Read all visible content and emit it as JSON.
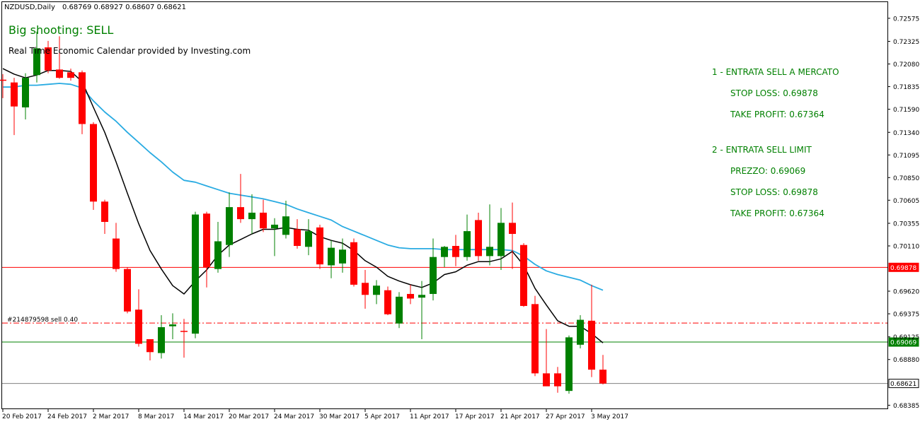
{
  "header": {
    "symbol": "NZDUSD,Daily",
    "ohlc": "0.68769 0.68927 0.68607 0.68621"
  },
  "overlay": {
    "signal": "Big shooting: SELL",
    "provider": "Real Time Economic Calendar provided by Investing.com"
  },
  "trade_info": [
    "1 - ENTRATA SELL A MERCATO",
    "STOP LOSS: 0.69878",
    "TAKE PROFIT: 0.67364",
    "2 - ENTRATA SELL LIMIT",
    "PREZZO: 0.69069",
    "STOP LOSS: 0.69878",
    "TAKE PROFIT: 0.67364"
  ],
  "colors": {
    "bull": "#008000",
    "bear": "#ff0000",
    "ma_fast": "#000000",
    "ma_slow": "#29abe2",
    "sl_line": "#ff0000",
    "entry_line": "#008000",
    "text_green": "#008000"
  },
  "chart_data": {
    "type": "candlestick",
    "ylim": [
      0.6835,
      0.7275
    ],
    "y_ticks": [
      "0.72575",
      "0.72325",
      "0.72080",
      "0.71835",
      "0.71590",
      "0.71340",
      "0.71095",
      "0.70850",
      "0.70605",
      "0.70355",
      "0.70110",
      "0.69620",
      "0.69375",
      "0.69125",
      "0.68880",
      "0.68385"
    ],
    "x_labels": [
      {
        "index": 0,
        "label": "20 Feb 2017"
      },
      {
        "index": 4,
        "label": "24 Feb 2017"
      },
      {
        "index": 8,
        "label": "2 Mar 2017"
      },
      {
        "index": 12,
        "label": "8 Mar 2017"
      },
      {
        "index": 16,
        "label": "14 Mar 2017"
      },
      {
        "index": 20,
        "label": "20 Mar 2017"
      },
      {
        "index": 24,
        "label": "24 Mar 2017"
      },
      {
        "index": 28,
        "label": "30 Mar 2017"
      },
      {
        "index": 32,
        "label": "5 Apr 2017"
      },
      {
        "index": 36,
        "label": "11 Apr 2017"
      },
      {
        "index": 40,
        "label": "17 Apr 2017"
      },
      {
        "index": 44,
        "label": "21 Apr 2017"
      },
      {
        "index": 48,
        "label": "27 Apr 2017"
      },
      {
        "index": 52,
        "label": "3 May 2017"
      }
    ],
    "candles": [
      {
        "o": 0.7191,
        "h": 0.7197,
        "l": 0.7171,
        "c": 0.719
      },
      {
        "o": 0.7188,
        "h": 0.7193,
        "l": 0.7131,
        "c": 0.7162
      },
      {
        "o": 0.7161,
        "h": 0.7198,
        "l": 0.7148,
        "c": 0.7193
      },
      {
        "o": 0.7196,
        "h": 0.7243,
        "l": 0.7188,
        "c": 0.7225
      },
      {
        "o": 0.7226,
        "h": 0.7233,
        "l": 0.7198,
        "c": 0.7201
      },
      {
        "o": 0.7202,
        "h": 0.7238,
        "l": 0.7192,
        "c": 0.7193
      },
      {
        "o": 0.7199,
        "h": 0.7203,
        "l": 0.719,
        "c": 0.7193
      },
      {
        "o": 0.7199,
        "h": 0.7201,
        "l": 0.7132,
        "c": 0.7143
      },
      {
        "o": 0.7143,
        "h": 0.7145,
        "l": 0.705,
        "c": 0.7059
      },
      {
        "o": 0.7059,
        "h": 0.7061,
        "l": 0.7024,
        "c": 0.7037
      },
      {
        "o": 0.7019,
        "h": 0.7036,
        "l": 0.6983,
        "c": 0.6986
      },
      {
        "o": 0.6986,
        "h": 0.6988,
        "l": 0.6938,
        "c": 0.694
      },
      {
        "o": 0.6942,
        "h": 0.6964,
        "l": 0.6902,
        "c": 0.6905
      },
      {
        "o": 0.691,
        "h": 0.691,
        "l": 0.6887,
        "c": 0.6896
      },
      {
        "o": 0.6895,
        "h": 0.6936,
        "l": 0.6889,
        "c": 0.6923
      },
      {
        "o": 0.6924,
        "h": 0.6938,
        "l": 0.691,
        "c": 0.6926
      },
      {
        "o": 0.6919,
        "h": 0.6932,
        "l": 0.689,
        "c": 0.6918
      },
      {
        "o": 0.6916,
        "h": 0.7048,
        "l": 0.6911,
        "c": 0.7045
      },
      {
        "o": 0.7046,
        "h": 0.7048,
        "l": 0.6966,
        "c": 0.6988
      },
      {
        "o": 0.6986,
        "h": 0.7037,
        "l": 0.6982,
        "c": 0.7016
      },
      {
        "o": 0.7012,
        "h": 0.7069,
        "l": 0.6999,
        "c": 0.7053
      },
      {
        "o": 0.7053,
        "h": 0.7089,
        "l": 0.7036,
        "c": 0.704
      },
      {
        "o": 0.704,
        "h": 0.7067,
        "l": 0.7024,
        "c": 0.7047
      },
      {
        "o": 0.7047,
        "h": 0.7061,
        "l": 0.7026,
        "c": 0.703
      },
      {
        "o": 0.703,
        "h": 0.7041,
        "l": 0.7,
        "c": 0.7034
      },
      {
        "o": 0.7023,
        "h": 0.706,
        "l": 0.7019,
        "c": 0.7043
      },
      {
        "o": 0.7029,
        "h": 0.704,
        "l": 0.7008,
        "c": 0.7011
      },
      {
        "o": 0.701,
        "h": 0.704,
        "l": 0.7001,
        "c": 0.7027
      },
      {
        "o": 0.7031,
        "h": 0.7034,
        "l": 0.6986,
        "c": 0.6991
      },
      {
        "o": 0.699,
        "h": 0.7017,
        "l": 0.6976,
        "c": 0.7009
      },
      {
        "o": 0.6992,
        "h": 0.7019,
        "l": 0.6982,
        "c": 0.7007
      },
      {
        "o": 0.7015,
        "h": 0.7019,
        "l": 0.6967,
        "c": 0.6969
      },
      {
        "o": 0.6971,
        "h": 0.6985,
        "l": 0.6943,
        "c": 0.6958
      },
      {
        "o": 0.6958,
        "h": 0.6974,
        "l": 0.6948,
        "c": 0.6968
      },
      {
        "o": 0.6963,
        "h": 0.6967,
        "l": 0.6936,
        "c": 0.6937
      },
      {
        "o": 0.6927,
        "h": 0.6961,
        "l": 0.6922,
        "c": 0.6956
      },
      {
        "o": 0.6959,
        "h": 0.6969,
        "l": 0.6948,
        "c": 0.6954
      },
      {
        "o": 0.6955,
        "h": 0.6973,
        "l": 0.691,
        "c": 0.6958
      },
      {
        "o": 0.6959,
        "h": 0.7019,
        "l": 0.6952,
        "c": 0.6999
      },
      {
        "o": 0.6999,
        "h": 0.7011,
        "l": 0.6988,
        "c": 0.701
      },
      {
        "o": 0.7011,
        "h": 0.7023,
        "l": 0.6989,
        "c": 0.6999
      },
      {
        "o": 0.6999,
        "h": 0.7045,
        "l": 0.6995,
        "c": 0.7027
      },
      {
        "o": 0.7039,
        "h": 0.7047,
        "l": 0.6995,
        "c": 0.7
      },
      {
        "o": 0.7,
        "h": 0.7056,
        "l": 0.699,
        "c": 0.701
      },
      {
        "o": 0.7,
        "h": 0.7052,
        "l": 0.6985,
        "c": 0.7036
      },
      {
        "o": 0.7036,
        "h": 0.7058,
        "l": 0.6986,
        "c": 0.7024
      },
      {
        "o": 0.7012,
        "h": 0.7014,
        "l": 0.6945,
        "c": 0.6946
      },
      {
        "o": 0.6948,
        "h": 0.6957,
        "l": 0.687,
        "c": 0.6873
      },
      {
        "o": 0.6873,
        "h": 0.6921,
        "l": 0.686,
        "c": 0.6859
      },
      {
        "o": 0.6873,
        "h": 0.688,
        "l": 0.6852,
        "c": 0.6859
      },
      {
        "o": 0.6854,
        "h": 0.6914,
        "l": 0.6851,
        "c": 0.6912
      },
      {
        "o": 0.6904,
        "h": 0.6936,
        "l": 0.69,
        "c": 0.6931
      },
      {
        "o": 0.693,
        "h": 0.6969,
        "l": 0.6869,
        "c": 0.6877
      },
      {
        "o": 0.6877,
        "h": 0.6893,
        "l": 0.6861,
        "c": 0.6862
      }
    ],
    "ma_fast": [
      0.7203,
      0.7197,
      0.7193,
      0.7196,
      0.7201,
      0.7201,
      0.72,
      0.7189,
      0.7161,
      0.7134,
      0.7102,
      0.7068,
      0.7035,
      0.7006,
      0.6986,
      0.6968,
      0.6959,
      0.6973,
      0.6985,
      0.7001,
      0.7012,
      0.7018,
      0.7024,
      0.7029,
      0.7029,
      0.7031,
      0.7029,
      0.7028,
      0.7021,
      0.7017,
      0.7014,
      0.7006,
      0.6995,
      0.6988,
      0.6978,
      0.6973,
      0.6969,
      0.6966,
      0.6971,
      0.698,
      0.6983,
      0.699,
      0.6994,
      0.6994,
      0.6997,
      0.7005,
      0.699,
      0.6965,
      0.6947,
      0.693,
      0.6924,
      0.6924,
      0.6916,
      0.6906
    ],
    "ma_slow": [
      0.7183,
      0.7183,
      0.7185,
      0.7185,
      0.7186,
      0.7187,
      0.7186,
      0.7182,
      0.7168,
      0.7156,
      0.7146,
      0.7134,
      0.7123,
      0.7112,
      0.7102,
      0.7091,
      0.7082,
      0.708,
      0.7076,
      0.7072,
      0.7068,
      0.7066,
      0.7064,
      0.7062,
      0.7059,
      0.7056,
      0.7051,
      0.7047,
      0.7043,
      0.7039,
      0.7032,
      0.7027,
      0.7022,
      0.7017,
      0.7012,
      0.7009,
      0.7008,
      0.7008,
      0.7008,
      0.7007,
      0.7007,
      0.7007,
      0.7007,
      0.7007,
      0.7007,
      0.7006,
      0.7,
      0.6991,
      0.6984,
      0.698,
      0.6977,
      0.6974,
      0.6968,
      0.6963
    ],
    "levels": [
      {
        "price": 0.69878,
        "label": "0.69878",
        "style": "solid",
        "color": "#ff0000"
      },
      {
        "price": 0.69069,
        "label": "0.69069",
        "style": "solid",
        "color": "#008000"
      },
      {
        "price": 0.68621,
        "label": "0.68621",
        "style": "solid",
        "color": "#808080"
      },
      {
        "price": 0.69275,
        "label": "",
        "style": "dashdot",
        "color": "#ff0000"
      }
    ],
    "order_label": "#214879598 sell 0.40"
  }
}
